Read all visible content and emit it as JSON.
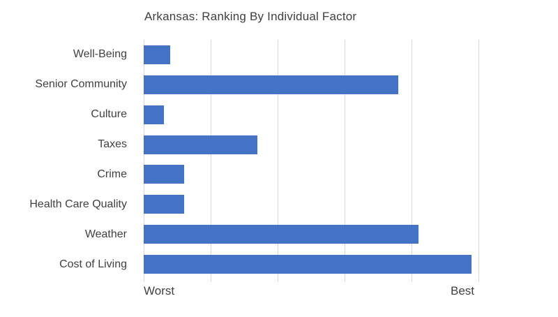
{
  "title": "Arkansas: Ranking By Individual Factor",
  "axis": {
    "left_label": "Worst",
    "right_label": "Best"
  },
  "colors": {
    "bar": "#4472C4",
    "gridline": "#D9D9D9",
    "text": "#404040",
    "background": "#FFFFFF"
  },
  "chart_data": {
    "type": "bar",
    "orientation": "horizontal",
    "title": "Arkansas: Ranking By Individual Factor",
    "categories": [
      "Well-Being",
      "Senior Community",
      "Culture",
      "Taxes",
      "Crime",
      "Health Care Quality",
      "Weather",
      "Cost of Living"
    ],
    "values": [
      4,
      38,
      3,
      17,
      6,
      6,
      41,
      49
    ],
    "xlabel": "",
    "ylabel": "",
    "xlim": [
      0,
      50
    ],
    "gridline_interval": 10,
    "grid": true,
    "x_tick_labels": [
      "Worst",
      "Best"
    ],
    "legend": "none"
  }
}
